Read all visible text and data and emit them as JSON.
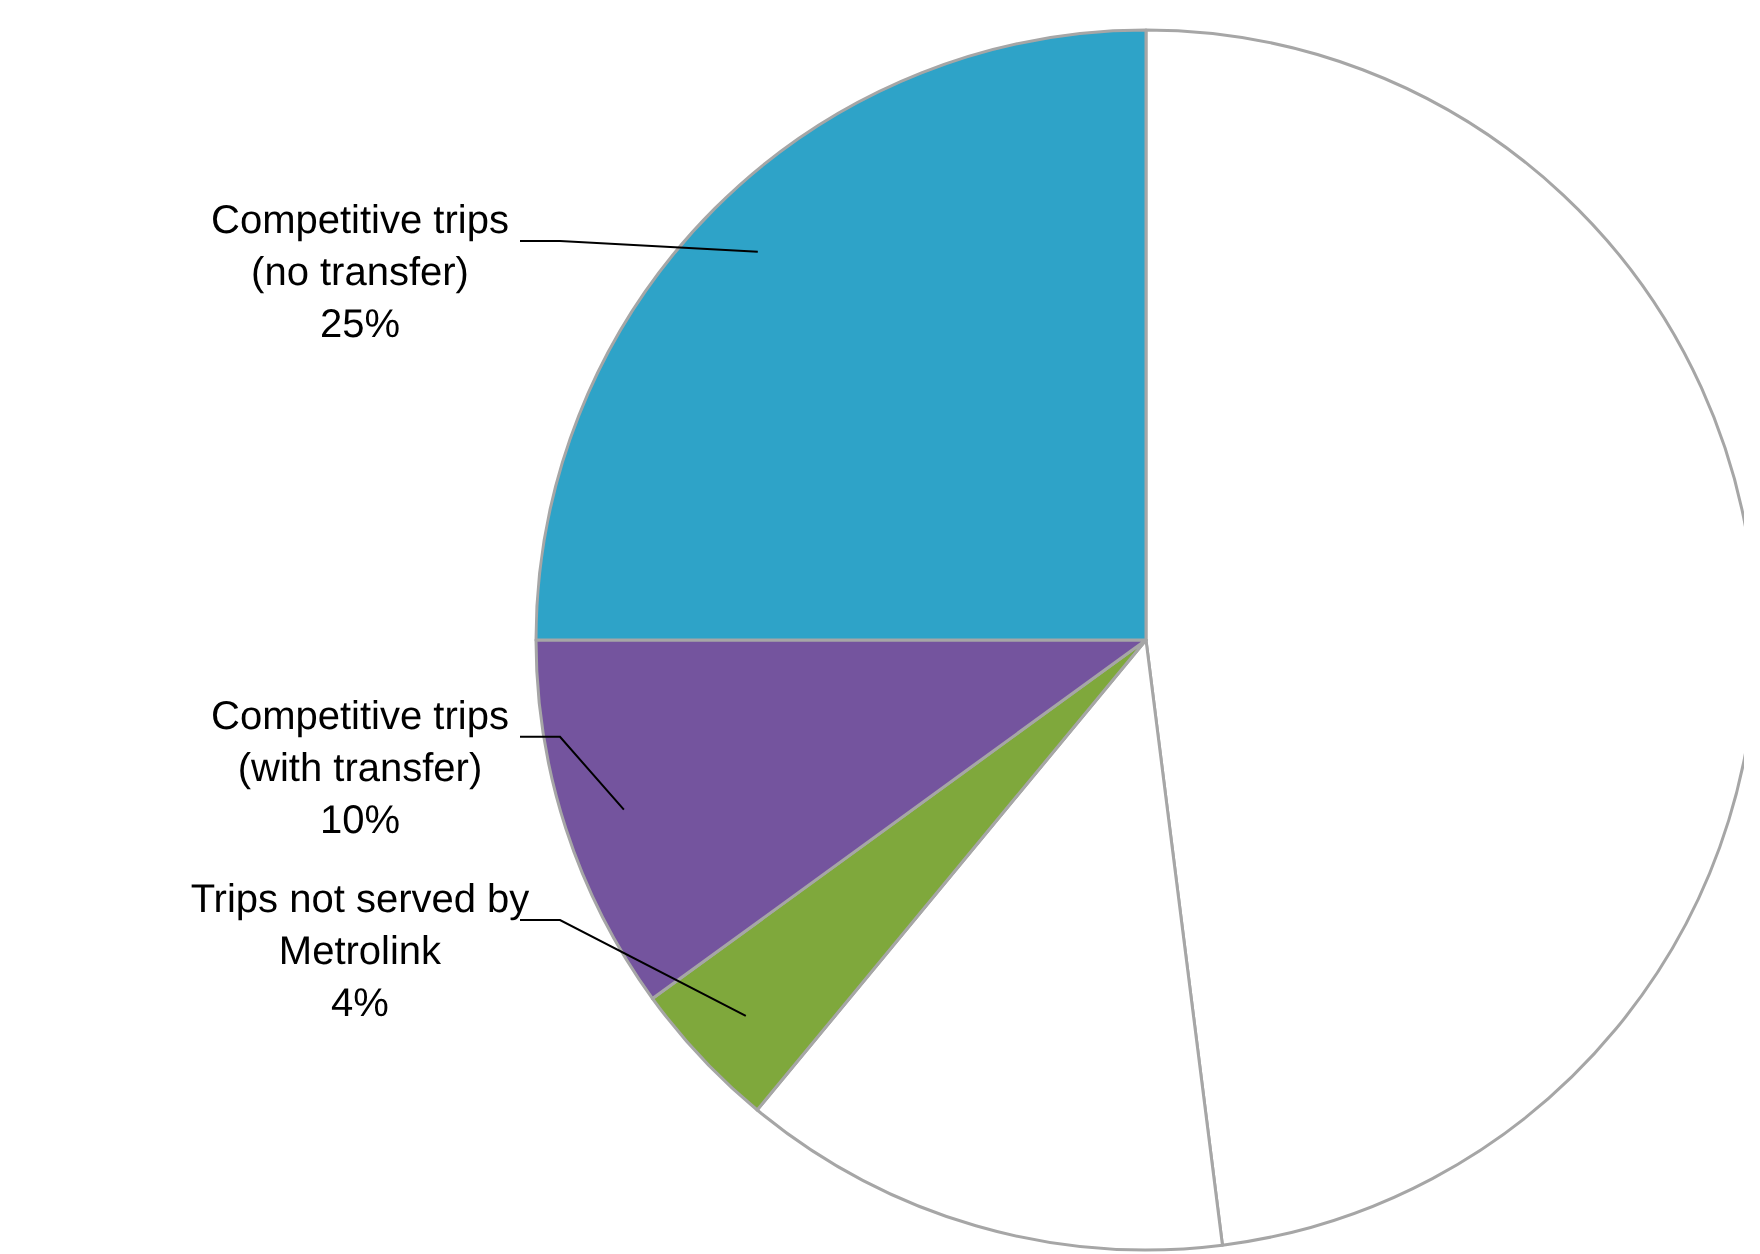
{
  "chart_data": {
    "type": "pie",
    "categories": [
      null,
      null,
      "Trips not served by Metrolink",
      "Competitive trips (with transfer)",
      "Competitive trips (no transfer)"
    ],
    "values": [
      48,
      13,
      4,
      10,
      25
    ],
    "colors": [
      "#ffffff",
      "#ffffff",
      "#7fa83c",
      "#74549e",
      "#2ea3c8"
    ],
    "value_labels": [
      null,
      null,
      "4%",
      "10%",
      "25%"
    ]
  }
}
